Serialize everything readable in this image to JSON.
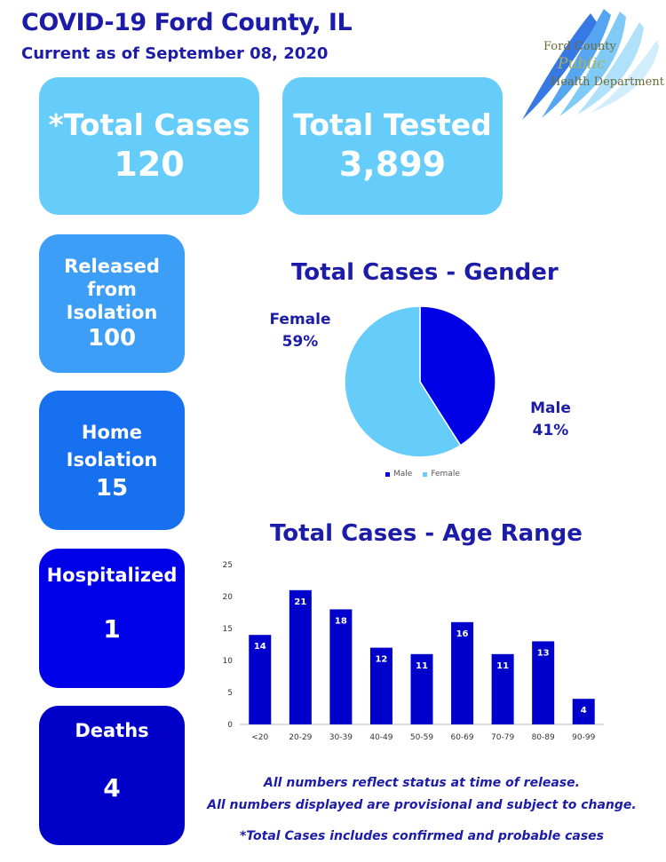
{
  "header": {
    "title": "COVID-19 Ford County, IL",
    "subtitle": "Current as of September 08, 2020"
  },
  "logo": {
    "line1": "Ford County",
    "line2": "Public",
    "line3": "Health Department"
  },
  "stats": {
    "total_cases": {
      "label": "*Total Cases",
      "value": "120"
    },
    "total_tested": {
      "label": "Total Tested",
      "value": "3,899"
    },
    "released": {
      "label_line1": "Released",
      "label_line2": "from",
      "label_line3": "Isolation",
      "value": "100"
    },
    "home_isolation": {
      "label_line1": "Home",
      "label_line2": "Isolation",
      "value": "15"
    },
    "hospitalized": {
      "label": "Hospitalized",
      "value": "1"
    },
    "deaths": {
      "label": "Deaths",
      "value": "4"
    }
  },
  "colors": {
    "male": "#0000e6",
    "female": "#66ccf9",
    "bar": "#0000cc"
  },
  "chart_data": [
    {
      "type": "pie",
      "title": "Total Cases - Gender",
      "categories": [
        "Male",
        "Female"
      ],
      "values": [
        41,
        59
      ],
      "data_labels": {
        "male_name": "Male",
        "male_pct": "41%",
        "female_name": "Female",
        "female_pct": "59%"
      },
      "legend": {
        "position": "bottom",
        "entries": [
          "Male",
          "Female"
        ]
      }
    },
    {
      "type": "bar",
      "title": "Total Cases - Age Range",
      "categories": [
        "<20",
        "20-29",
        "30-39",
        "40-49",
        "50-59",
        "60-69",
        "70-79",
        "80-89",
        "90-99"
      ],
      "values": [
        14,
        21,
        18,
        12,
        11,
        16,
        11,
        13,
        4
      ],
      "ylim": [
        0,
        25
      ],
      "yticks": [
        0,
        5,
        10,
        15,
        20,
        25
      ],
      "grid": false
    }
  ],
  "footnotes": {
    "line1": "All numbers reflect status at time of release.",
    "line2": "All numbers displayed are provisional and subject to change.",
    "line3": "*Total Cases includes confirmed and probable cases"
  }
}
